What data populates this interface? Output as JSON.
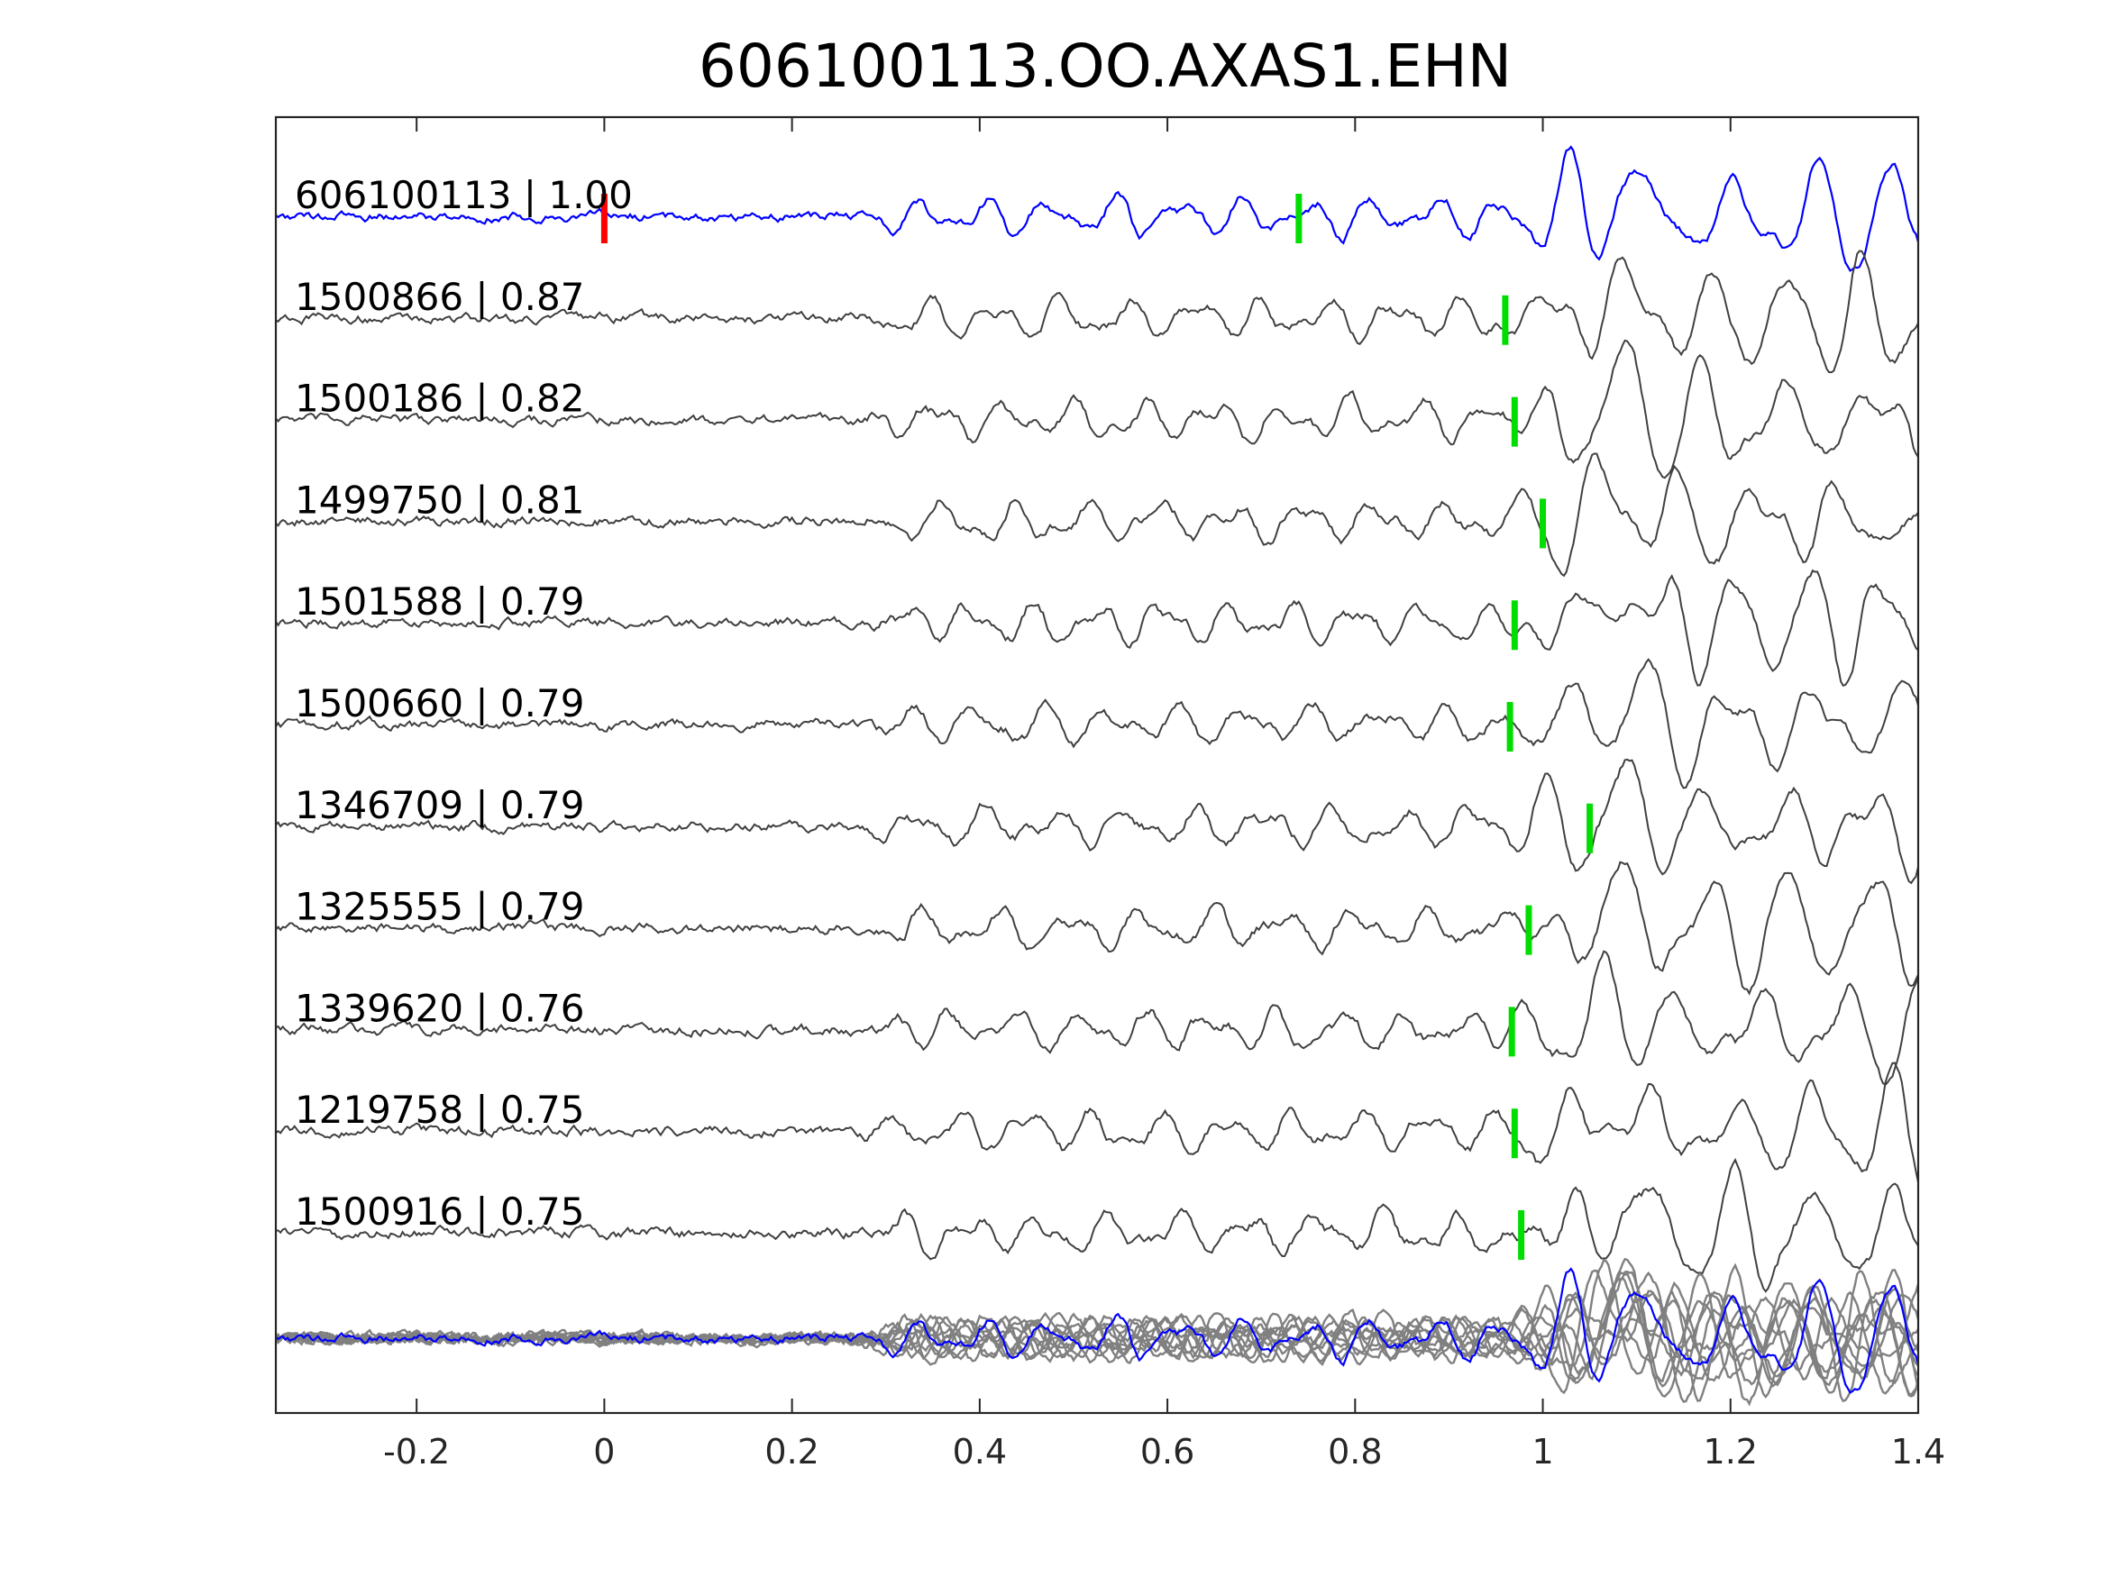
{
  "chart_data": {
    "type": "line",
    "title": "606100113.OO.AXAS1.EHN",
    "xlabel": "",
    "ylabel": "",
    "xlim": [
      -0.35,
      1.4
    ],
    "xticks": [
      -0.2,
      0,
      0.2,
      0.4,
      0.6,
      0.8,
      1,
      1.2,
      1.4
    ],
    "xtick_labels": [
      "-0.2",
      "0",
      "0.2",
      "0.4",
      "0.6",
      "0.8",
      "1",
      "1.2",
      "1.4"
    ],
    "grid": false,
    "colors": {
      "template": "#0000ff",
      "match": "#404040",
      "overlay": "#808080",
      "pick_red": "#ff0000",
      "pick_green": "#00dd00",
      "axes": "#262626"
    },
    "template_pick_time": 0.0,
    "traces": [
      {
        "label": "606100113 | 1.00",
        "cc": 1.0,
        "pick": 0.74,
        "template": true
      },
      {
        "label": "1500866 | 0.87",
        "cc": 0.87,
        "pick": 0.96
      },
      {
        "label": "1500186 | 0.82",
        "cc": 0.82,
        "pick": 0.97
      },
      {
        "label": "1499750 | 0.81",
        "cc": 0.81,
        "pick": 1.0
      },
      {
        "label": "1501588 | 0.79",
        "cc": 0.79,
        "pick": 0.97
      },
      {
        "label": "1500660 | 0.79",
        "cc": 0.79,
        "pick": 0.965
      },
      {
        "label": "1346709 | 0.79",
        "cc": 0.79,
        "pick": 1.05
      },
      {
        "label": "1325555 | 0.79",
        "cc": 0.79,
        "pick": 0.985
      },
      {
        "label": "1339620 | 0.76",
        "cc": 0.76,
        "pick": 0.967
      },
      {
        "label": "1219758 | 0.75",
        "cc": 0.75,
        "pick": 0.97
      },
      {
        "label": "1500916 | 0.75",
        "cc": 0.75,
        "pick": 0.977
      }
    ]
  }
}
